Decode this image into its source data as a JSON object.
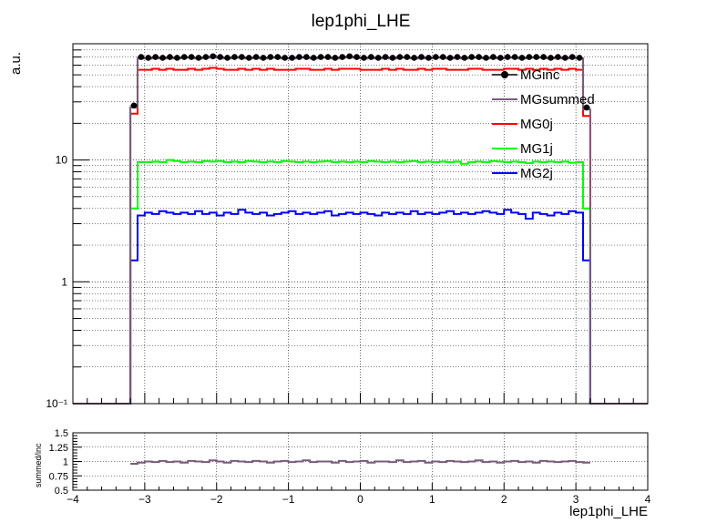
{
  "chart_data": {
    "type": "line",
    "title": "lep1phi_LHE",
    "xlabel": "lep1phi_LHE",
    "ylabel": "a.u.",
    "yscale": "log",
    "xlim": [
      -4,
      4
    ],
    "ylim": [
      0.1,
      90
    ],
    "x_ticks": [
      "−4",
      "−3",
      "−2",
      "−1",
      "0",
      "1",
      "2",
      "3",
      "4"
    ],
    "y_ticks": [
      "10⁻¹",
      "1",
      "10"
    ],
    "grid": true,
    "legend_position": "top-right",
    "x_bins": {
      "start": -3.2,
      "end": 3.2,
      "count": 64
    },
    "series": [
      {
        "name": "MGinc",
        "style": "markers",
        "color": "#000000",
        "values": [
          28,
          70,
          69,
          70,
          69,
          70,
          69,
          70,
          70,
          69,
          70,
          71,
          70,
          69,
          70,
          70,
          69,
          70,
          69,
          70,
          70,
          69,
          69,
          70,
          70,
          69,
          70,
          70,
          69,
          70,
          71,
          70,
          69,
          70,
          69,
          70,
          69,
          70,
          70,
          69,
          70,
          69,
          70,
          70,
          69,
          70,
          69,
          70,
          70,
          69,
          70,
          69,
          70,
          70,
          69,
          70,
          70,
          70,
          69,
          70,
          69,
          70,
          69,
          27
        ]
      },
      {
        "name": "MGsummed",
        "style": "step",
        "color": "#7a5c7a",
        "values": [
          27,
          68,
          68,
          69,
          68,
          69,
          68,
          69,
          69,
          68,
          69,
          70,
          69,
          68,
          69,
          69,
          68,
          69,
          68,
          69,
          69,
          68,
          68,
          69,
          69,
          68,
          69,
          69,
          68,
          69,
          70,
          69,
          68,
          69,
          68,
          69,
          68,
          69,
          69,
          68,
          69,
          68,
          69,
          69,
          68,
          69,
          68,
          69,
          69,
          68,
          69,
          68,
          69,
          69,
          68,
          69,
          69,
          69,
          68,
          69,
          68,
          69,
          68,
          26
        ]
      },
      {
        "name": "MG0j",
        "style": "step",
        "color": "#ff0000",
        "values": [
          24,
          55,
          55,
          56,
          55,
          56,
          55,
          55,
          56,
          55,
          56,
          57,
          56,
          55,
          55,
          56,
          55,
          56,
          55,
          56,
          55,
          55,
          55,
          56,
          56,
          55,
          55,
          56,
          55,
          56,
          56,
          56,
          55,
          55,
          55,
          56,
          55,
          56,
          55,
          55,
          56,
          55,
          56,
          56,
          55,
          55,
          55,
          56,
          56,
          55,
          55,
          55,
          56,
          56,
          55,
          56,
          55,
          56,
          55,
          56,
          55,
          56,
          55,
          23
        ]
      },
      {
        "name": "MG1j",
        "style": "step",
        "color": "#00ff00",
        "values": [
          4.0,
          9.6,
          9.6,
          9.7,
          9.6,
          10.0,
          9.8,
          9.6,
          9.7,
          9.6,
          9.8,
          9.7,
          9.8,
          9.6,
          9.7,
          9.6,
          9.8,
          9.7,
          9.6,
          9.7,
          9.6,
          9.8,
          9.7,
          9.6,
          9.7,
          9.6,
          9.7,
          9.8,
          9.6,
          9.7,
          9.6,
          9.7,
          9.6,
          9.8,
          9.7,
          9.6,
          9.7,
          9.6,
          9.7,
          9.8,
          9.6,
          9.7,
          9.6,
          9.7,
          9.6,
          9.7,
          9.3,
          9.6,
          9.7,
          9.6,
          9.8,
          9.7,
          9.6,
          9.7,
          9.6,
          9.4,
          9.7,
          9.6,
          9.7,
          9.6,
          9.7,
          9.5,
          9.6,
          4.0
        ]
      },
      {
        "name": "MG2j",
        "style": "step",
        "color": "#0000ff",
        "values": [
          1.5,
          3.5,
          3.7,
          3.6,
          3.8,
          3.7,
          3.6,
          3.7,
          3.6,
          3.8,
          3.6,
          3.7,
          3.5,
          3.7,
          3.6,
          3.9,
          3.7,
          3.6,
          3.7,
          3.5,
          3.6,
          3.7,
          3.8,
          3.6,
          3.7,
          3.6,
          3.7,
          3.8,
          3.5,
          3.6,
          3.7,
          3.6,
          3.7,
          3.6,
          3.5,
          3.7,
          3.6,
          3.7,
          3.6,
          3.8,
          3.6,
          3.7,
          3.6,
          3.7,
          3.8,
          3.6,
          3.7,
          3.6,
          3.7,
          3.8,
          3.7,
          3.6,
          3.9,
          3.7,
          3.6,
          3.3,
          3.7,
          3.6,
          3.5,
          3.7,
          3.6,
          3.8,
          3.7,
          1.5
        ]
      }
    ],
    "ratio": {
      "ylabel": "summed/inc",
      "ylim": [
        0.5,
        1.5
      ],
      "y_ticks": [
        "0.5",
        "0.75",
        "1",
        "1.25",
        "1.5"
      ],
      "values": [
        0.96,
        0.98,
        1.0,
        0.99,
        1.01,
        0.99,
        1.0,
        0.98,
        1.01,
        1.0,
        0.99,
        1.02,
        1.0,
        0.98,
        1.01,
        1.0,
        0.99,
        1.01,
        1.0,
        0.98,
        1.0,
        1.01,
        0.99,
        1.0,
        1.02,
        0.99,
        1.0,
        1.0,
        0.98,
        1.01,
        0.99,
        1.0,
        1.01,
        0.98,
        1.0,
        1.0,
        0.99,
        1.02,
        0.99,
        1.0,
        1.01,
        0.98,
        1.0,
        0.99,
        1.01,
        1.0,
        0.99,
        1.0,
        1.02,
        0.99,
        1.0,
        0.98,
        1.0,
        1.01,
        0.99,
        1.0,
        0.98,
        1.01,
        1.0,
        0.99,
        1.0,
        1.01,
        0.99,
        0.98
      ]
    }
  }
}
